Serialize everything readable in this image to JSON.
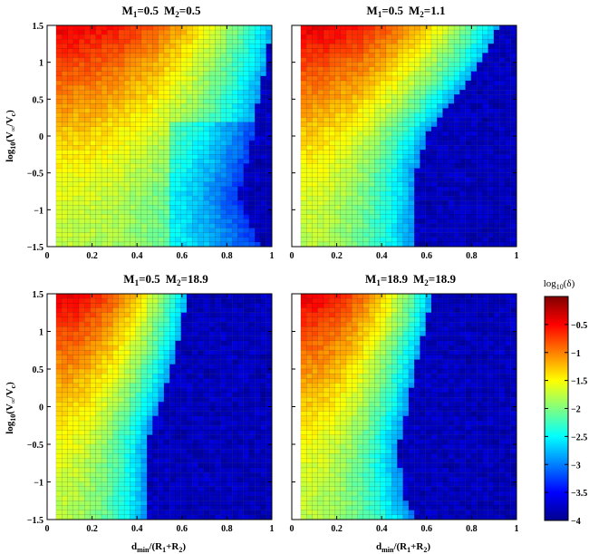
{
  "chart_data": [
    {
      "type": "heatmap",
      "title": "M1=0.5  M2=0.5",
      "title_parts": {
        "m1_sub": "1",
        "m1_val": "=0.5",
        "m2_sub": "2",
        "m2_val": "=0.5"
      },
      "x_range": [
        0,
        1
      ],
      "y_range": [
        -1.5,
        1.5
      ],
      "boundary": [
        [
          -1.5,
          0.95
        ],
        [
          -1.2,
          0.9
        ],
        [
          -0.8,
          0.85
        ],
        [
          -0.5,
          0.88
        ],
        [
          -0.2,
          0.9
        ],
        [
          0,
          0.92
        ],
        [
          0.2,
          0.92
        ],
        [
          0.5,
          0.94
        ],
        [
          0.8,
          0.96
        ],
        [
          1.1,
          0.98
        ],
        [
          1.5,
          1.0
        ]
      ],
      "xticks": [
        "0",
        "0.2",
        "0.4",
        "0.6",
        "0.8",
        "1"
      ],
      "yticks": [
        "1.5",
        "1",
        "0.5",
        "0",
        "−0.5",
        "−1",
        "−1.5"
      ]
    },
    {
      "type": "heatmap",
      "title": "M1=0.5  M2=1.1",
      "title_parts": {
        "m1_sub": "1",
        "m1_val": "=0.5",
        "m2_sub": "2",
        "m2_val": "=1.1"
      },
      "x_range": [
        0,
        1
      ],
      "y_range": [
        -1.5,
        1.5
      ],
      "boundary": [
        [
          -1.5,
          0.55
        ],
        [
          -1.2,
          0.55
        ],
        [
          -0.8,
          0.55
        ],
        [
          -0.5,
          0.55
        ],
        [
          -0.2,
          0.58
        ],
        [
          0,
          0.6
        ],
        [
          0.2,
          0.65
        ],
        [
          0.5,
          0.72
        ],
        [
          0.8,
          0.8
        ],
        [
          1.1,
          0.86
        ],
        [
          1.5,
          0.92
        ]
      ],
      "xticks": [
        "0",
        "0.2",
        "0.4",
        "0.6",
        "0.8",
        "1"
      ],
      "yticks": [
        "1.5",
        "1",
        "0.5",
        "0",
        "−0.5",
        "−1",
        "−1.5"
      ]
    },
    {
      "type": "heatmap",
      "title": "M1=0.5  M2=18.9",
      "title_parts": {
        "m1_sub": "1",
        "m1_val": "=0.5",
        "m2_sub": "2",
        "m2_val": "=18.9"
      },
      "x_range": [
        0,
        1
      ],
      "y_range": [
        -1.5,
        1.5
      ],
      "boundary": [
        [
          -1.5,
          0.45
        ],
        [
          -1.2,
          0.45
        ],
        [
          -0.8,
          0.45
        ],
        [
          -0.5,
          0.45
        ],
        [
          -0.2,
          0.47
        ],
        [
          0,
          0.5
        ],
        [
          0.2,
          0.52
        ],
        [
          0.5,
          0.55
        ],
        [
          0.8,
          0.58
        ],
        [
          1.1,
          0.6
        ],
        [
          1.5,
          0.62
        ]
      ],
      "xticks": [
        "0",
        "0.2",
        "0.4",
        "0.6",
        "0.8",
        "1"
      ],
      "yticks": [
        "1.5",
        "1",
        "0.5",
        "0",
        "−0.5",
        "−1",
        "−1.5"
      ]
    },
    {
      "type": "heatmap",
      "title": "M1=18.9  M2=18.9",
      "title_parts": {
        "m1_sub": "1",
        "m1_val": "=18.9",
        "m2_sub": "2",
        "m2_val": "=18.9"
      },
      "x_range": [
        0,
        1
      ],
      "y_range": [
        -1.5,
        1.5
      ],
      "boundary": [
        [
          -1.5,
          0.55
        ],
        [
          -1.2,
          0.5
        ],
        [
          -0.8,
          0.48
        ],
        [
          -0.5,
          0.48
        ],
        [
          -0.2,
          0.5
        ],
        [
          0,
          0.52
        ],
        [
          0.2,
          0.53
        ],
        [
          0.5,
          0.55
        ],
        [
          0.8,
          0.57
        ],
        [
          1.1,
          0.6
        ],
        [
          1.5,
          0.62
        ]
      ],
      "xticks": [
        "0",
        "0.2",
        "0.4",
        "0.6",
        "0.8",
        "1"
      ],
      "yticks": [
        "1.5",
        "1",
        "0.5",
        "0",
        "−0.5",
        "−1",
        "−1.5"
      ]
    }
  ],
  "axes": {
    "ylabel": "log10(V∞/Vc)",
    "ylabel_parts": {
      "pre": "log",
      "sub1": "10",
      "mid": "(V",
      "sub2": "∞",
      "mid2": "/V",
      "sub3": "c",
      "post": ")"
    },
    "xlabel": "dmin/(R1+R2)",
    "xlabel_parts": {
      "pre": "d",
      "sub1": "min",
      "mid": "/(R",
      "sub2": "1",
      "mid2": "+R",
      "sub3": "2",
      "post": ")"
    }
  },
  "colorbar": {
    "label": "log10(δ)",
    "label_parts": {
      "pre": "log",
      "sub": "10",
      "post": "(δ)"
    },
    "range": [
      -4,
      0
    ],
    "ticks": [
      "−0.5",
      "−1",
      "−1.5",
      "−2",
      "−2.5",
      "−3",
      "−3.5",
      "−4"
    ],
    "colormap": "jet"
  }
}
